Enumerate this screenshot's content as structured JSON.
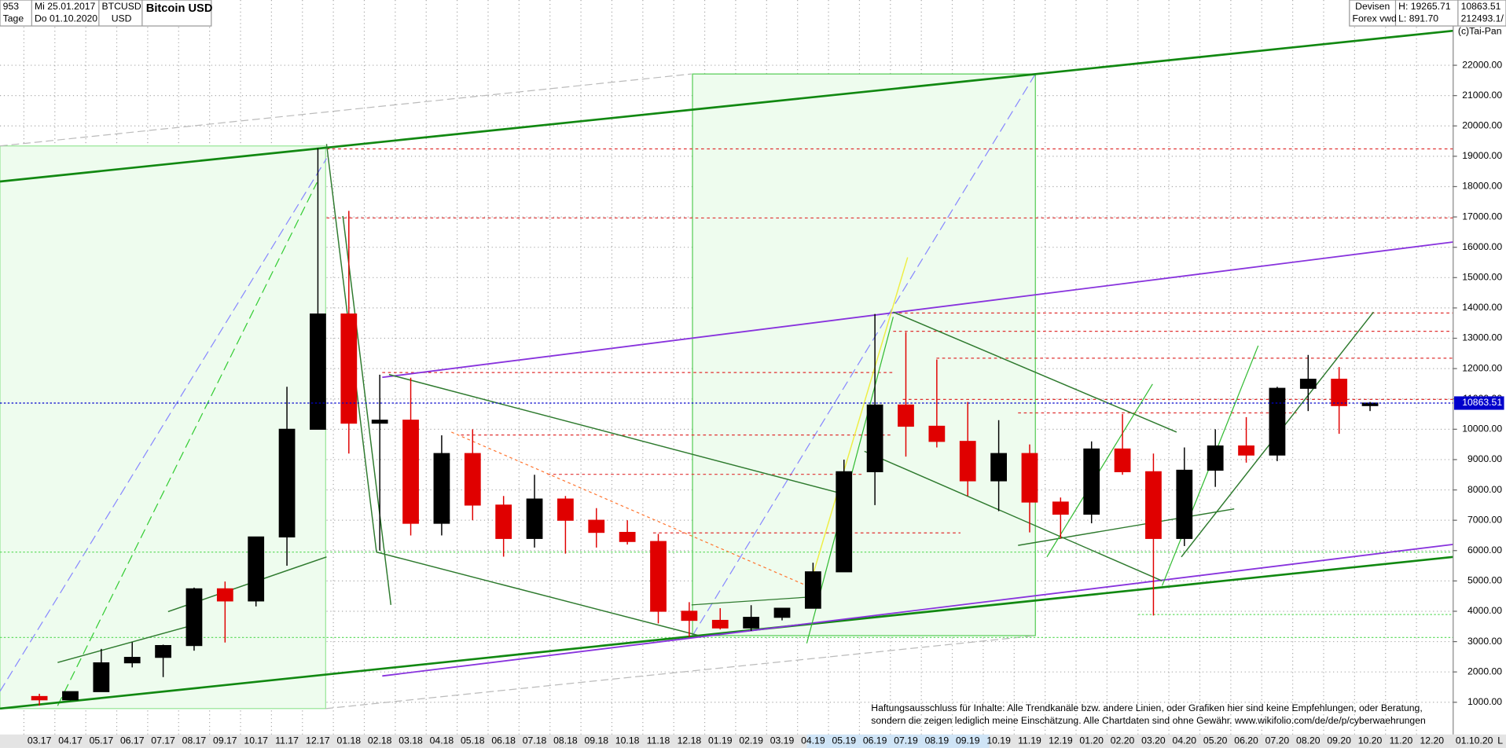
{
  "header": {
    "count": "953",
    "start_date": "Mi 25.01.2017",
    "period": "Tage",
    "end_date": "Do 01.10.2020",
    "symbol": "BTCUSD",
    "currency": "USD",
    "name": "Bitcoin USD",
    "market": "Devisen",
    "source": "Forex vwd",
    "high": "H: 19265.71",
    "low": "L: 891.70",
    "volume": "212493.1/",
    "copyright": "(c)Tai-Pan"
  },
  "chart_data": {
    "type": "candlestick",
    "categories": [
      "03.17",
      "04.17",
      "05.17",
      "06.17",
      "07.17",
      "08.17",
      "09.17",
      "10.17",
      "11.17",
      "12.17",
      "01.18",
      "02.18",
      "03.18",
      "04.18",
      "05.18",
      "06.18",
      "07.18",
      "08.18",
      "09.18",
      "10.18",
      "11.18",
      "12.18",
      "01.19",
      "02.19",
      "03.19",
      "04.19",
      "05.19",
      "06.19",
      "07.19",
      "08.19",
      "09.19",
      "10.19",
      "11.19",
      "12.19",
      "01.20",
      "02.20",
      "03.20",
      "04.20",
      "05.20",
      "06.20",
      "07.20",
      "08.20",
      "09.20",
      "10.20",
      "11.20",
      "12.20"
    ],
    "open": [
      1190,
      1080,
      1350,
      2300,
      2480,
      2870,
      4740,
      4340,
      6450,
      10000,
      13800,
      10200,
      10300,
      6900,
      9200,
      7500,
      6400,
      7700,
      7000,
      6600,
      6300,
      4000,
      3700,
      3450,
      3800,
      4100,
      5300,
      8600,
      10800,
      10100,
      9600,
      8300,
      9200,
      7600,
      7200,
      9350,
      8600,
      6400,
      8650,
      9450,
      9150,
      11350,
      11650,
      10780,
      null,
      null
    ],
    "high": [
      1280,
      1350,
      2760,
      2980,
      2900,
      4780,
      4980,
      6450,
      11400,
      19266,
      17200,
      11800,
      11700,
      9800,
      10000,
      7800,
      8500,
      7800,
      7400,
      7000,
      6550,
      4300,
      4100,
      4200,
      4100,
      5600,
      9000,
      13800,
      13200,
      12300,
      10900,
      10300,
      9500,
      7750,
      9600,
      10500,
      9200,
      9400,
      10000,
      10400,
      11400,
      12450,
      12050,
      10900,
      null,
      null
    ],
    "low": [
      890,
      1060,
      1350,
      2150,
      1830,
      2700,
      2970,
      4160,
      5500,
      10000,
      9200,
      6000,
      6500,
      6500,
      7000,
      5800,
      6100,
      5900,
      6100,
      6200,
      3600,
      3150,
      3400,
      3350,
      3700,
      4100,
      5300,
      7500,
      9100,
      9400,
      7800,
      7300,
      6600,
      6400,
      6900,
      8500,
      3860,
      6150,
      8100,
      8900,
      8950,
      10600,
      9850,
      10600,
      null,
      null
    ],
    "close": [
      1080,
      1350,
      2300,
      2480,
      2870,
      4740,
      4340,
      6450,
      10000,
      13800,
      10200,
      10300,
      6900,
      9200,
      7500,
      6400,
      7700,
      7000,
      6600,
      6300,
      4000,
      3700,
      3450,
      3800,
      4100,
      5300,
      8600,
      10800,
      10100,
      9600,
      8300,
      9200,
      7600,
      7200,
      9350,
      8600,
      6400,
      8650,
      9450,
      9150,
      11350,
      11650,
      10780,
      10863.51,
      null,
      null
    ],
    "up_color": "#000000",
    "down_color": "#e00000",
    "current_value": 10863.51,
    "current_color": "#0000cc",
    "x_end_label": "01.10.20",
    "x_end_mark": "L",
    "ylim": [
      0,
      24150
    ],
    "yticks": [
      {
        "value": 1000,
        "label": "1000.00"
      },
      {
        "value": 2000,
        "label": "2000.00"
      },
      {
        "value": 3000,
        "label": "3000.00"
      },
      {
        "value": 4000,
        "label": "4000.00"
      },
      {
        "value": 5000,
        "label": "5000.00"
      },
      {
        "value": 6000,
        "label": "6000.00"
      },
      {
        "value": 7000,
        "label": "7000.00"
      },
      {
        "value": 8000,
        "label": "8000.00"
      },
      {
        "value": 9000,
        "label": "9000.00"
      },
      {
        "value": 10000,
        "label": "10000.00"
      },
      {
        "value": 11000,
        "label": "11000.00"
      },
      {
        "value": 12000,
        "label": "12000.00"
      },
      {
        "value": 13000,
        "label": "13000.00"
      },
      {
        "value": 14000,
        "label": "14000.00"
      },
      {
        "value": 15000,
        "label": "15000.00"
      },
      {
        "value": 16000,
        "label": "16000.00"
      },
      {
        "value": 17000,
        "label": "17000.00"
      },
      {
        "value": 18000,
        "label": "18000.00"
      },
      {
        "value": 19000,
        "label": "19000.00"
      },
      {
        "value": 20000,
        "label": "20000.00"
      },
      {
        "value": 21000,
        "label": "21000.00"
      },
      {
        "value": 22000,
        "label": "22000.00"
      }
    ],
    "grid": true,
    "disclaimer": [
      "Haftungsausschluss für Inhalte: Alle Trendkanäle bzw. andere Linien, oder Grafiken hier sind keine Empfehlungen, oder Beratung,",
      "sondern die zeigen lediglich meine  Einschätzung. Alle Chartdaten sind ohne Gewähr.  www.wikifolio.com/de/de/p/cyberwaehrungen"
    ]
  }
}
